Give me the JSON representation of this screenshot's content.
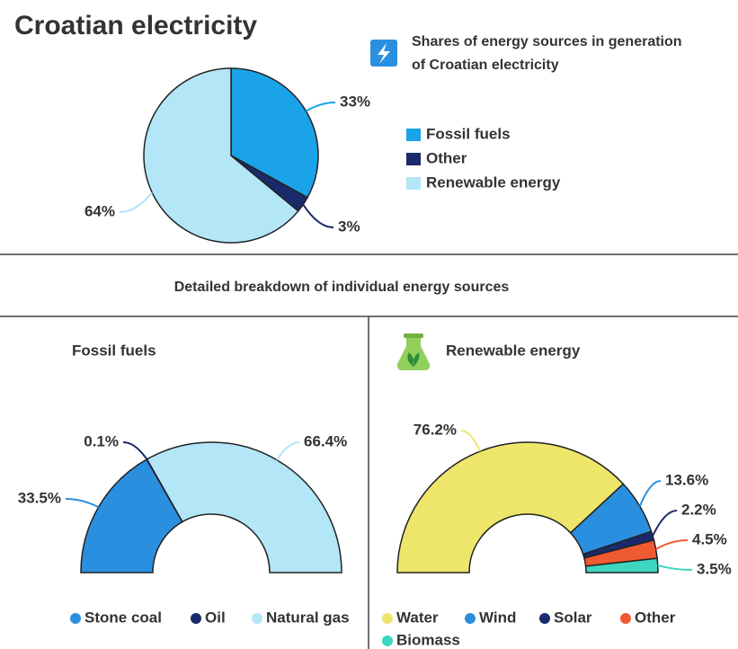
{
  "title": "Croatian electricity",
  "section_title": "Detailed breakdown of individual energy sources",
  "chart_data": [
    {
      "type": "pie",
      "title": "Shares of energy sources in generation of Croatian electricity",
      "categories": [
        "Fossil fuels",
        "Other",
        "Renewable energy"
      ],
      "values": [
        33,
        3,
        64
      ],
      "value_labels": [
        "33%",
        "3%",
        "64%"
      ],
      "colors": [
        "#1aa3e8",
        "#1b2a6b",
        "#b3e6f7"
      ]
    },
    {
      "type": "semidonut",
      "title": "Fossil fuels",
      "categories": [
        "Stone coal",
        "Oil",
        "Natural gas"
      ],
      "values": [
        33.5,
        0.1,
        66.4
      ],
      "value_labels": [
        "33.5%",
        "0.1%",
        "66.4%"
      ],
      "colors": [
        "#2b8fe0",
        "#1b2a6b",
        "#b3e6f7"
      ]
    },
    {
      "type": "semidonut",
      "title": "Renewable energy",
      "categories": [
        "Water",
        "Wind",
        "Solar",
        "Other",
        "Biomass"
      ],
      "values": [
        76.2,
        13.6,
        2.2,
        4.5,
        3.5
      ],
      "value_labels": [
        "76.2%",
        "13.6%",
        "2.2%",
        "4.5%",
        "3.5%"
      ],
      "colors": [
        "#ede66a",
        "#2b8fe0",
        "#1b2a6b",
        "#f05a30",
        "#3dd6c0"
      ]
    }
  ]
}
